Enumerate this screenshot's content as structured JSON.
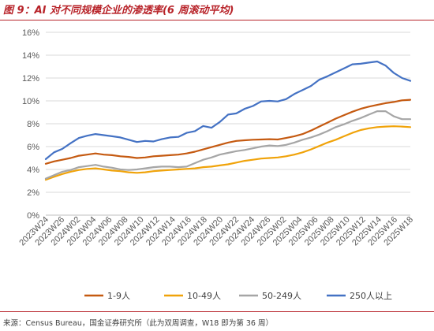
{
  "title": "图 9：AI 对不同规模企业的渗透率(6 周滚动平均)",
  "source": "来源：Census Bureau，国金证券研究所（此为双周调查，W18 即为第 36 周）",
  "chart_data": {
    "type": "line",
    "ylim": [
      0,
      16
    ],
    "y_ticks": [
      0,
      2,
      4,
      6,
      8,
      10,
      12,
      14,
      16
    ],
    "y_tick_labels": [
      "0%",
      "2%",
      "4%",
      "6%",
      "8%",
      "10%",
      "12%",
      "14%",
      "16%"
    ],
    "x_tick_labels": [
      "2023W24",
      "2023W26",
      "2024W02",
      "2024W04",
      "2024W06",
      "2024W08",
      "2024W10",
      "2024W12",
      "2024W14",
      "2024W16",
      "2024W18",
      "2024W20",
      "2024W22",
      "2024W24",
      "2024W26",
      "2025W02",
      "2025W04",
      "2025W06",
      "2025W08",
      "2025W10",
      "2025W12",
      "2025W14",
      "2025W16",
      "2025W18"
    ],
    "legend_position": "bottom",
    "series": [
      {
        "name": "1-9人",
        "color": "#c55a11",
        "values": [
          4.5,
          4.7,
          4.85,
          5.0,
          5.2,
          5.3,
          5.4,
          5.3,
          5.25,
          5.15,
          5.1,
          5.0,
          5.05,
          5.15,
          5.2,
          5.25,
          5.3,
          5.4,
          5.55,
          5.75,
          5.95,
          6.15,
          6.35,
          6.5,
          6.55,
          6.6,
          6.62,
          6.65,
          6.62,
          6.75,
          6.9,
          7.1,
          7.4,
          7.75,
          8.1,
          8.45,
          8.75,
          9.05,
          9.3,
          9.5,
          9.65,
          9.8,
          9.9,
          10.05,
          10.1
        ]
      },
      {
        "name": "10-49人",
        "color": "#f0a30a",
        "values": [
          3.1,
          3.35,
          3.6,
          3.8,
          3.95,
          4.05,
          4.1,
          4.0,
          3.9,
          3.85,
          3.75,
          3.7,
          3.75,
          3.85,
          3.9,
          3.95,
          4.0,
          4.05,
          4.1,
          4.2,
          4.25,
          4.35,
          4.45,
          4.6,
          4.75,
          4.85,
          4.95,
          5.0,
          5.05,
          5.15,
          5.3,
          5.5,
          5.75,
          6.05,
          6.35,
          6.6,
          6.9,
          7.2,
          7.45,
          7.6,
          7.7,
          7.75,
          7.78,
          7.75,
          7.7
        ]
      },
      {
        "name": "50-249人",
        "color": "#a6a6a6",
        "values": [
          3.2,
          3.5,
          3.8,
          3.95,
          4.2,
          4.3,
          4.4,
          4.25,
          4.15,
          4.0,
          3.95,
          4.0,
          4.1,
          4.2,
          4.25,
          4.25,
          4.2,
          4.25,
          4.55,
          4.85,
          5.05,
          5.3,
          5.45,
          5.6,
          5.7,
          5.85,
          6.0,
          6.1,
          6.05,
          6.15,
          6.35,
          6.6,
          6.8,
          7.05,
          7.35,
          7.7,
          7.95,
          8.25,
          8.5,
          8.8,
          9.1,
          9.1,
          8.65,
          8.4,
          8.4
        ]
      },
      {
        "name": "250人以上",
        "color": "#4472c4",
        "values": [
          4.9,
          5.5,
          5.8,
          6.3,
          6.75,
          6.95,
          7.1,
          7.0,
          6.9,
          6.8,
          6.6,
          6.4,
          6.5,
          6.45,
          6.65,
          6.8,
          6.85,
          7.2,
          7.35,
          7.8,
          7.65,
          8.15,
          8.8,
          8.9,
          9.3,
          9.55,
          9.95,
          10.0,
          9.95,
          10.15,
          10.6,
          10.95,
          11.3,
          11.85,
          12.15,
          12.5,
          12.85,
          13.2,
          13.25,
          13.35,
          13.45,
          13.1,
          12.45,
          12.0,
          11.75
        ]
      }
    ]
  }
}
